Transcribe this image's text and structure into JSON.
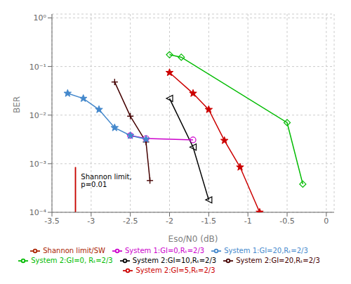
{
  "chart_data": {
    "type": "line",
    "xlabel": "Eso/N0 (dB)",
    "ylabel": "BER",
    "log": "y",
    "grid": true,
    "legend": "bottom",
    "xlim": [
      -3.5,
      0.1
    ],
    "ylim": [
      0.0001,
      1.2
    ],
    "xticks": [
      -3.5,
      -3,
      -2.5,
      -2,
      -1.5,
      -1,
      -0.5,
      0
    ],
    "yticks": [
      {
        "value": 0.0001,
        "label": "10⁻⁴"
      },
      {
        "value": 0.001,
        "label": "10⁻³"
      },
      {
        "value": 0.01,
        "label": "10⁻²"
      },
      {
        "value": 0.1,
        "label": "10⁻¹"
      },
      {
        "value": 1,
        "label": "10⁰"
      }
    ],
    "series": [
      {
        "name": "System 2:GI=0, Rₜ=2/3",
        "color": "#00bb00",
        "marker": "diamond-open",
        "x": [
          -2.0,
          -1.85,
          -0.5,
          -0.3
        ],
        "values": [
          0.175,
          0.155,
          0.007,
          0.00038
        ]
      },
      {
        "name": "System 2:GI=5,Rₜ=2/3",
        "color": "#cc0000",
        "marker": "star",
        "x": [
          -2.0,
          -1.7,
          -1.5,
          -1.3,
          -1.1,
          -0.85
        ],
        "values": [
          0.075,
          0.028,
          0.013,
          0.003,
          0.00085,
          0.0001
        ]
      },
      {
        "name": "System 2:GI=10,Rₜ=2/3",
        "color": "#000000",
        "marker": "triangle-left-open",
        "x": [
          -2.0,
          -1.7,
          -1.5
        ],
        "values": [
          0.022,
          0.0022,
          0.00018
        ]
      },
      {
        "name": "System 2:GI=20,Rₜ=2/3",
        "color": "#440000",
        "marker": "plus",
        "x": [
          -2.7,
          -2.5,
          -2.3,
          -2.25
        ],
        "values": [
          0.048,
          0.0095,
          0.0028,
          0.00045
        ]
      },
      {
        "name": "System 1:GI=0,Rₜ=2/3",
        "color": "#cc00cc",
        "marker": "circle-open",
        "x": [
          -2.5,
          -2.3,
          -1.7
        ],
        "values": [
          0.0038,
          0.0033,
          0.0031
        ]
      },
      {
        "name": "System 1:GI=20,Rₜ=2/3",
        "color": "#4488cc",
        "marker": "star",
        "x": [
          -3.3,
          -3.1,
          -2.9,
          -2.7,
          -2.5,
          -2.3
        ],
        "values": [
          0.028,
          0.022,
          0.013,
          0.0055,
          0.0038,
          0.0032
        ]
      },
      {
        "name": "Shannon limit/SW",
        "color": "#aa2200",
        "x": [
          -3.2,
          -3.2
        ],
        "values": [
          0.0001,
          0.00085
        ]
      },
      {
        "color": "#cc0000",
        "x": [
          -3.2,
          -3.2
        ],
        "values": [
          0.0001,
          0.00085
        ]
      }
    ],
    "annotations": [
      {
        "text": "Shannon limit,\np=0.01",
        "x": -3.13,
        "y": 0.00065
      }
    ]
  }
}
